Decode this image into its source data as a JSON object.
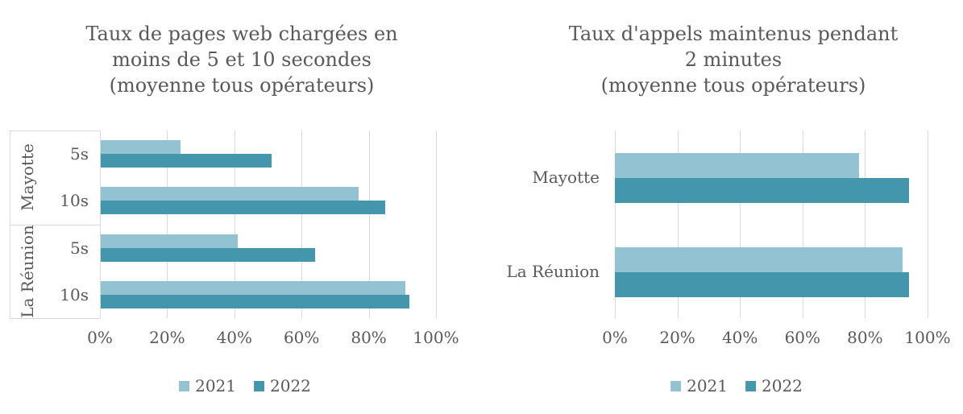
{
  "figure": {
    "background": "#ffffff",
    "text_color": "#595959",
    "gridline_color": "#d9d9d9"
  },
  "chart_data": [
    {
      "type": "bar",
      "orientation": "horizontal",
      "title": "Taux de pages web chargées en moins de 5 et 10 secondes (moyenne tous opérateurs)",
      "title_lines": [
        "Taux de pages web chargées en",
        "moins de 5 et 10 secondes",
        "(moyenne tous opérateurs)"
      ],
      "categories": [
        "Mayotte 5s",
        "Mayotte 10s",
        "La Réunion 5s",
        "La Réunion 10s"
      ],
      "category_groups": [
        {
          "label": "Mayotte",
          "subcategories": [
            "5s",
            "10s"
          ]
        },
        {
          "label": "La Réunion",
          "subcategories": [
            "5s",
            "10s"
          ]
        }
      ],
      "series": [
        {
          "name": "2021",
          "color": "#93c2d3",
          "values": [
            24,
            77,
            41,
            91
          ]
        },
        {
          "name": "2022",
          "color": "#4496ac",
          "values": [
            51,
            85,
            64,
            92
          ]
        }
      ],
      "unit": "%",
      "xlim": [
        0,
        100
      ],
      "x_ticks": [
        "0%",
        "20%",
        "40%",
        "60%",
        "80%",
        "100%"
      ],
      "grid": true,
      "legend_position": "bottom"
    },
    {
      "type": "bar",
      "orientation": "horizontal",
      "title": "Taux d'appels maintenus pendant 2 minutes (moyenne tous opérateurs)",
      "title_lines": [
        "Taux d'appels maintenus pendant",
        "2 minutes",
        "(moyenne tous opérateurs)"
      ],
      "categories": [
        "Mayotte",
        "La Réunion"
      ],
      "series": [
        {
          "name": "2021",
          "color": "#93c2d3",
          "values": [
            78,
            92
          ]
        },
        {
          "name": "2022",
          "color": "#4496ac",
          "values": [
            94,
            94
          ]
        }
      ],
      "unit": "%",
      "xlim": [
        0,
        100
      ],
      "x_ticks": [
        "0%",
        "20%",
        "40%",
        "60%",
        "80%",
        "100%"
      ],
      "grid": true,
      "legend_position": "bottom"
    }
  ]
}
